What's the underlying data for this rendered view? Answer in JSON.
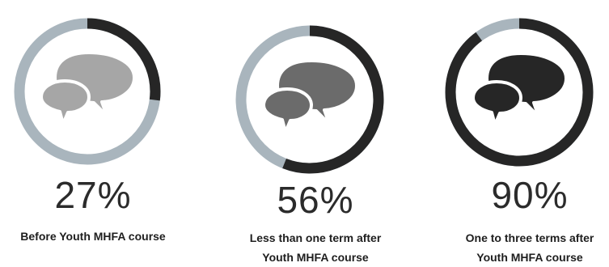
{
  "colors": {
    "ring_filled": "#262626",
    "ring_track": "#a9b5bd"
  },
  "chart_data": [
    {
      "type": "donut",
      "value": 27,
      "value_label": "27%",
      "caption_lines": [
        "Before Youth MHFA course"
      ],
      "icon": "speech-bubbles-icon",
      "icon_color": "#a6a6a6"
    },
    {
      "type": "donut",
      "value": 56,
      "value_label": "56%",
      "caption_lines": [
        "Less than one term after",
        "Youth MHFA course"
      ],
      "icon": "speech-bubbles-icon",
      "icon_color": "#6b6b6b"
    },
    {
      "type": "donut",
      "value": 90,
      "value_label": "90%",
      "caption_lines": [
        "One to three terms after",
        "Youth MHFA course"
      ],
      "icon": "speech-bubbles-icon",
      "icon_color": "#262626"
    }
  ]
}
